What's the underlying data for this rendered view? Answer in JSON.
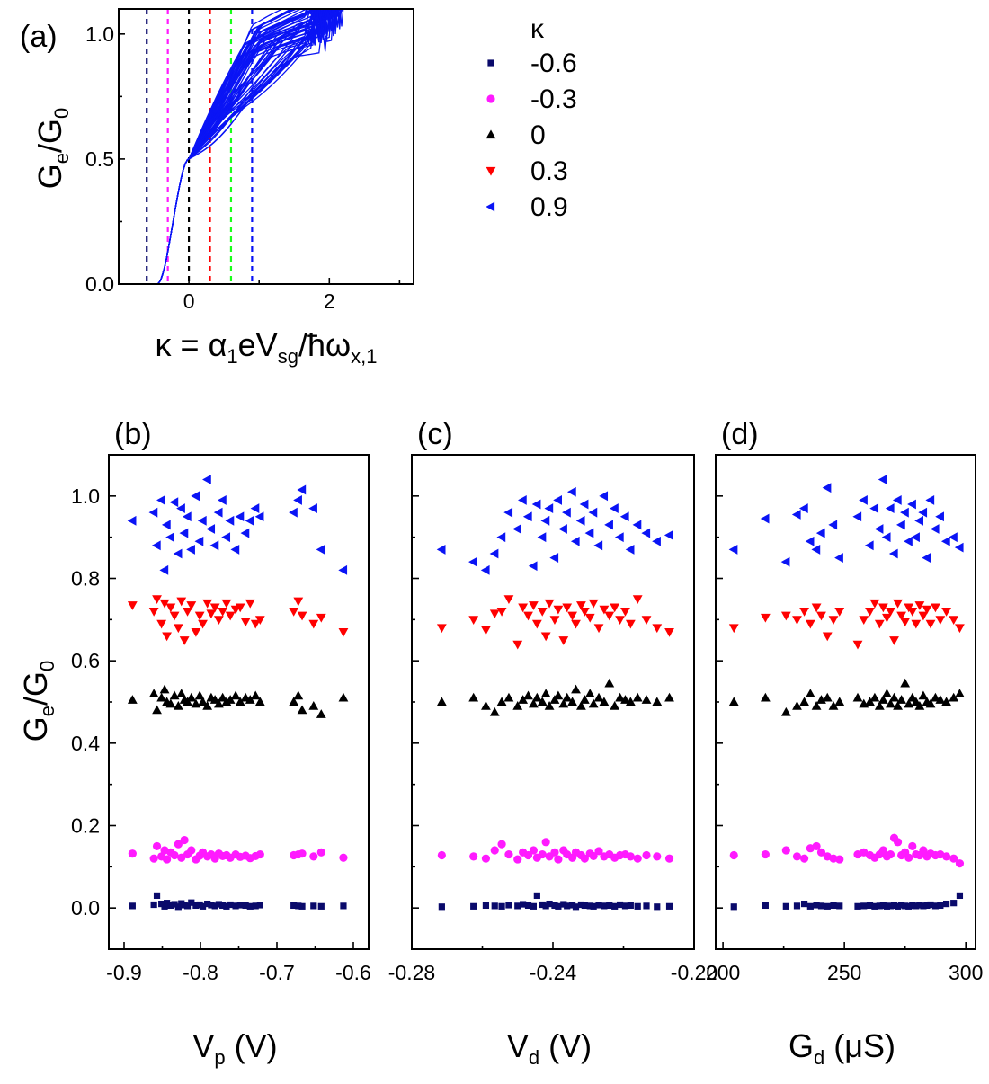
{
  "figure": {
    "colors": {
      "kappa_m06": "#0a0a6b",
      "kappa_m03": "#ff1aff",
      "kappa_0": "#000000",
      "kappa_03": "#ff0000",
      "kappa_06": "#1aff1a",
      "kappa_09": "#0a14f5",
      "curves": "#0a14f5"
    }
  },
  "chart_data": [
    {
      "id": "a",
      "panel_label": "(a)",
      "type": "line",
      "xlabel_parts": [
        "κ = α",
        "1",
        "eV",
        "sg",
        "/ħω",
        "x,1"
      ],
      "ylabel_parts": [
        "G",
        "e",
        "/G",
        "0"
      ],
      "xlim": [
        -1.0,
        3.2
      ],
      "ylim": [
        0.0,
        1.1
      ],
      "xticks": [
        0,
        2
      ],
      "xtick_labels": [
        "0",
        "2"
      ],
      "yticks": [
        0.0,
        0.5,
        1.0
      ],
      "ytick_labels": [
        "0.0",
        "0.5",
        "1.0"
      ],
      "kappa_markers": [
        {
          "kappa": -0.6,
          "color": "#0a0a6b"
        },
        {
          "kappa": -0.3,
          "color": "#ff1aff"
        },
        {
          "kappa": 0.0,
          "color": "#000000"
        },
        {
          "kappa": 0.3,
          "color": "#ff0000"
        },
        {
          "kappa": 0.6,
          "color": "#1aff1a"
        },
        {
          "kappa": 0.9,
          "color": "#0a14f5"
        }
      ],
      "curve_count": 60,
      "curve_model": {
        "description": "Scaled conductance curves G_e/G_0 vs kappa; rise from 0 near kappa=-0.4, kink near 0.5 at kappa=0, continue to ~1.0 by kappa~1-2",
        "onset_kappa": -0.45,
        "half_plateau_kappa": 0.0,
        "half_plateau_value": 0.5
      },
      "legend": {
        "title": "κ",
        "entries": [
          {
            "label": "-0.6",
            "marker": "square",
            "color": "#0a0a6b"
          },
          {
            "label": "-0.3",
            "marker": "circle",
            "color": "#ff1aff"
          },
          {
            "label": "0",
            "marker": "triangle-up",
            "color": "#000000"
          },
          {
            "label": "0.3",
            "marker": "triangle-down",
            "color": "#ff0000"
          },
          {
            "label": "0.9",
            "marker": "triangle-left",
            "color": "#0a14f5"
          }
        ]
      }
    },
    {
      "id": "b",
      "panel_label": "(b)",
      "type": "scatter",
      "xlabel_parts": [
        "V",
        "p",
        " (V)"
      ],
      "ylabel_parts": [
        "G",
        "e",
        "/G",
        "0"
      ],
      "xlim": [
        -0.92,
        -0.58
      ],
      "ylim": [
        -0.1,
        1.1
      ],
      "xticks": [
        -0.9,
        -0.8,
        -0.7,
        -0.6
      ],
      "xtick_labels": [
        "-0.9",
        "-0.8",
        "-0.7",
        "-0.6"
      ],
      "yticks": [
        0.0,
        0.2,
        0.4,
        0.6,
        0.8,
        1.0
      ],
      "ytick_labels": [
        "0.0",
        "0.2",
        "0.4",
        "0.6",
        "0.8",
        "1.0"
      ],
      "x": [
        -0.889,
        -0.861,
        -0.857,
        -0.851,
        -0.847,
        -0.844,
        -0.839,
        -0.834,
        -0.829,
        -0.825,
        -0.821,
        -0.817,
        -0.812,
        -0.806,
        -0.801,
        -0.797,
        -0.791,
        -0.786,
        -0.781,
        -0.776,
        -0.771,
        -0.766,
        -0.761,
        -0.754,
        -0.748,
        -0.741,
        -0.735,
        -0.728,
        -0.722,
        -0.678,
        -0.672,
        -0.667,
        -0.652,
        -0.642,
        -0.613
      ],
      "series": [
        {
          "kappa": "-0.6",
          "marker": "square",
          "color": "#0a0a6b",
          "values": [
            0.005,
            0.008,
            0.03,
            0.01,
            0.004,
            0.012,
            0.006,
            0.009,
            0.003,
            0.011,
            0.007,
            0.005,
            0.013,
            0.006,
            0.008,
            0.004,
            0.01,
            0.007,
            0.005,
            0.009,
            0.006,
            0.004,
            0.008,
            0.005,
            0.007,
            0.006,
            0.004,
            0.005,
            0.007,
            0.006,
            0.005,
            0.004,
            0.005,
            0.004,
            0.005
          ]
        },
        {
          "kappa": "-0.3",
          "marker": "circle",
          "color": "#ff1aff",
          "values": [
            0.132,
            0.12,
            0.15,
            0.125,
            0.14,
            0.118,
            0.135,
            0.128,
            0.155,
            0.122,
            0.165,
            0.13,
            0.14,
            0.118,
            0.127,
            0.135,
            0.125,
            0.13,
            0.12,
            0.132,
            0.126,
            0.128,
            0.122,
            0.13,
            0.124,
            0.127,
            0.121,
            0.126,
            0.13,
            0.128,
            0.13,
            0.132,
            0.125,
            0.135,
            0.122
          ]
        },
        {
          "kappa": "0",
          "marker": "triangle-up",
          "color": "#000000",
          "values": [
            0.505,
            0.52,
            0.48,
            0.51,
            0.53,
            0.5,
            0.495,
            0.515,
            0.49,
            0.52,
            0.505,
            0.5,
            0.51,
            0.495,
            0.515,
            0.5,
            0.49,
            0.51,
            0.505,
            0.495,
            0.51,
            0.5,
            0.505,
            0.515,
            0.5,
            0.51,
            0.505,
            0.515,
            0.5,
            0.5,
            0.515,
            0.48,
            0.49,
            0.47,
            0.51
          ]
        },
        {
          "kappa": "0.3",
          "marker": "triangle-down",
          "color": "#ff0000",
          "values": [
            0.735,
            0.72,
            0.75,
            0.69,
            0.74,
            0.66,
            0.73,
            0.71,
            0.68,
            0.745,
            0.65,
            0.72,
            0.735,
            0.67,
            0.71,
            0.69,
            0.74,
            0.715,
            0.73,
            0.7,
            0.72,
            0.74,
            0.71,
            0.725,
            0.73,
            0.695,
            0.74,
            0.69,
            0.7,
            0.72,
            0.745,
            0.71,
            0.69,
            0.705,
            0.67
          ]
        },
        {
          "kappa": "0.9",
          "marker": "triangle-left",
          "color": "#0a14f5",
          "values": [
            0.94,
            0.96,
            0.88,
            0.99,
            0.82,
            0.93,
            0.9,
            0.985,
            0.86,
            0.97,
            0.91,
            0.95,
            0.87,
            1.0,
            0.89,
            0.94,
            1.04,
            0.92,
            0.88,
            0.96,
            0.99,
            0.9,
            0.94,
            0.87,
            0.95,
            0.91,
            0.94,
            0.97,
            0.95,
            0.96,
            0.99,
            1.015,
            0.97,
            0.87,
            0.82
          ]
        }
      ]
    },
    {
      "id": "c",
      "panel_label": "(c)",
      "type": "scatter",
      "xlabel_parts": [
        "V",
        "d",
        " (V)"
      ],
      "ylabel_parts": [
        "G",
        "e",
        "/G",
        "0"
      ],
      "xlim": [
        -0.28,
        -0.2
      ],
      "ylim": [
        -0.1,
        1.1
      ],
      "xticks": [
        -0.28,
        -0.24,
        -0.2
      ],
      "xtick_labels": [
        "-0.28",
        "-0.24",
        "-0.20"
      ],
      "yticks": [
        0.0,
        0.2,
        0.4,
        0.6,
        0.8,
        1.0
      ],
      "ytick_labels": [
        "0.0",
        "0.2",
        "0.4",
        "0.6",
        "0.8",
        "1.0"
      ],
      "x": [
        -0.2715,
        -0.2625,
        -0.259,
        -0.2565,
        -0.2545,
        -0.2525,
        -0.25,
        -0.2485,
        -0.247,
        -0.2455,
        -0.2445,
        -0.243,
        -0.242,
        -0.241,
        -0.2395,
        -0.2385,
        -0.237,
        -0.236,
        -0.2345,
        -0.2335,
        -0.232,
        -0.231,
        -0.2295,
        -0.2285,
        -0.227,
        -0.2255,
        -0.224,
        -0.2225,
        -0.221,
        -0.2195,
        -0.218,
        -0.216,
        -0.2135,
        -0.2105,
        -0.207
      ],
      "series": [
        {
          "kappa": "-0.6",
          "marker": "square",
          "color": "#0a0a6b",
          "values": [
            0.003,
            0.004,
            0.006,
            0.005,
            0.004,
            0.007,
            0.005,
            0.009,
            0.006,
            0.004,
            0.03,
            0.008,
            0.005,
            0.01,
            0.006,
            0.004,
            0.009,
            0.005,
            0.007,
            0.003,
            0.008,
            0.006,
            0.005,
            0.004,
            0.007,
            0.005,
            0.006,
            0.004,
            0.008,
            0.005,
            0.006,
            0.004,
            0.005,
            0.003,
            0.004
          ]
        },
        {
          "kappa": "-0.3",
          "marker": "circle",
          "color": "#ff1aff",
          "values": [
            0.128,
            0.125,
            0.12,
            0.14,
            0.155,
            0.13,
            0.118,
            0.135,
            0.128,
            0.14,
            0.122,
            0.13,
            0.16,
            0.125,
            0.135,
            0.118,
            0.14,
            0.13,
            0.122,
            0.135,
            0.128,
            0.12,
            0.132,
            0.126,
            0.138,
            0.125,
            0.13,
            0.122,
            0.128,
            0.13,
            0.125,
            0.12,
            0.128,
            0.125,
            0.12
          ]
        },
        {
          "kappa": "0",
          "marker": "triangle-up",
          "color": "#000000",
          "values": [
            0.5,
            0.51,
            0.49,
            0.475,
            0.5,
            0.51,
            0.49,
            0.505,
            0.515,
            0.495,
            0.51,
            0.5,
            0.52,
            0.49,
            0.505,
            0.515,
            0.495,
            0.51,
            0.5,
            0.53,
            0.49,
            0.505,
            0.52,
            0.495,
            0.51,
            0.5,
            0.545,
            0.49,
            0.51,
            0.505,
            0.5,
            0.51,
            0.505,
            0.5,
            0.51
          ]
        },
        {
          "kappa": "0.3",
          "marker": "triangle-down",
          "color": "#ff0000",
          "values": [
            0.68,
            0.7,
            0.675,
            0.715,
            0.72,
            0.75,
            0.64,
            0.73,
            0.71,
            0.735,
            0.69,
            0.72,
            0.66,
            0.74,
            0.7,
            0.725,
            0.65,
            0.73,
            0.71,
            0.69,
            0.735,
            0.72,
            0.705,
            0.74,
            0.68,
            0.725,
            0.71,
            0.73,
            0.7,
            0.72,
            0.69,
            0.75,
            0.7,
            0.68,
            0.67
          ]
        },
        {
          "kappa": "0.9",
          "marker": "triangle-left",
          "color": "#0a14f5",
          "values": [
            0.87,
            0.84,
            0.82,
            0.86,
            0.9,
            0.96,
            0.92,
            0.99,
            0.95,
            0.83,
            0.98,
            0.9,
            0.94,
            0.97,
            0.85,
            0.99,
            0.92,
            0.96,
            1.01,
            0.89,
            0.94,
            0.98,
            0.91,
            0.96,
            0.88,
            1.0,
            0.93,
            0.97,
            0.9,
            0.95,
            0.87,
            0.93,
            0.91,
            0.89,
            0.905
          ]
        }
      ]
    },
    {
      "id": "d",
      "panel_label": "(d)",
      "type": "scatter",
      "xlabel_parts": [
        "G",
        "d",
        " (μS)"
      ],
      "ylabel_parts": [
        "G",
        "e",
        "/G",
        "0"
      ],
      "xlim": [
        197,
        304
      ],
      "ylim": [
        -0.1,
        1.1
      ],
      "xticks": [
        200,
        250,
        300
      ],
      "xtick_labels": [
        "200",
        "250",
        "300"
      ],
      "yticks": [
        0.0,
        0.2,
        0.4,
        0.6,
        0.8,
        1.0
      ],
      "ytick_labels": [
        "0.0",
        "0.2",
        "0.4",
        "0.6",
        "0.8",
        "1.0"
      ],
      "x": [
        204.5,
        217.5,
        226,
        230.5,
        233.5,
        236,
        238.5,
        240.5,
        243,
        245.5,
        248,
        255.5,
        258,
        260.5,
        262.5,
        264.5,
        266,
        267.5,
        269,
        270.5,
        272,
        273.5,
        275,
        276.5,
        278,
        279.5,
        281,
        282.5,
        284,
        285.5,
        287.5,
        289.5,
        292,
        295,
        297.5
      ],
      "series": [
        {
          "kappa": "-0.6",
          "marker": "square",
          "color": "#0a0a6b",
          "values": [
            0.003,
            0.006,
            0.004,
            0.005,
            0.01,
            0.004,
            0.007,
            0.005,
            0.004,
            0.006,
            0.005,
            0.004,
            0.005,
            0.006,
            0.004,
            0.005,
            0.006,
            0.004,
            0.005,
            0.006,
            0.004,
            0.007,
            0.005,
            0.004,
            0.006,
            0.005,
            0.007,
            0.005,
            0.006,
            0.008,
            0.005,
            0.006,
            0.01,
            0.012,
            0.03
          ]
        },
        {
          "kappa": "-0.3",
          "marker": "circle",
          "color": "#ff1aff",
          "values": [
            0.128,
            0.13,
            0.14,
            0.125,
            0.12,
            0.145,
            0.15,
            0.135,
            0.125,
            0.12,
            0.118,
            0.13,
            0.135,
            0.128,
            0.122,
            0.13,
            0.14,
            0.125,
            0.13,
            0.17,
            0.16,
            0.128,
            0.135,
            0.122,
            0.15,
            0.13,
            0.128,
            0.14,
            0.125,
            0.132,
            0.128,
            0.13,
            0.125,
            0.12,
            0.108
          ]
        },
        {
          "kappa": "0",
          "marker": "triangle-up",
          "color": "#000000",
          "values": [
            0.5,
            0.51,
            0.475,
            0.49,
            0.5,
            0.52,
            0.49,
            0.505,
            0.51,
            0.49,
            0.5,
            0.51,
            0.495,
            0.5,
            0.51,
            0.49,
            0.505,
            0.52,
            0.495,
            0.51,
            0.49,
            0.505,
            0.545,
            0.495,
            0.51,
            0.5,
            0.49,
            0.515,
            0.5,
            0.495,
            0.51,
            0.505,
            0.5,
            0.51,
            0.52
          ]
        },
        {
          "kappa": "0.3",
          "marker": "triangle-down",
          "color": "#ff0000",
          "values": [
            0.68,
            0.705,
            0.71,
            0.7,
            0.72,
            0.69,
            0.73,
            0.71,
            0.66,
            0.7,
            0.72,
            0.64,
            0.7,
            0.72,
            0.74,
            0.69,
            0.73,
            0.705,
            0.72,
            0.65,
            0.74,
            0.71,
            0.695,
            0.73,
            0.72,
            0.69,
            0.735,
            0.71,
            0.725,
            0.69,
            0.73,
            0.7,
            0.72,
            0.7,
            0.68
          ]
        },
        {
          "kappa": "0.9",
          "marker": "triangle-left",
          "color": "#0a14f5",
          "values": [
            0.87,
            0.945,
            0.84,
            0.955,
            0.97,
            0.89,
            0.87,
            0.91,
            1.02,
            0.93,
            0.85,
            0.95,
            0.99,
            0.88,
            0.97,
            0.92,
            1.04,
            0.9,
            0.97,
            0.86,
            0.99,
            0.93,
            0.96,
            0.89,
            0.98,
            0.9,
            0.94,
            0.96,
            0.85,
            0.99,
            0.92,
            0.95,
            0.89,
            0.9,
            0.875
          ]
        }
      ]
    }
  ]
}
